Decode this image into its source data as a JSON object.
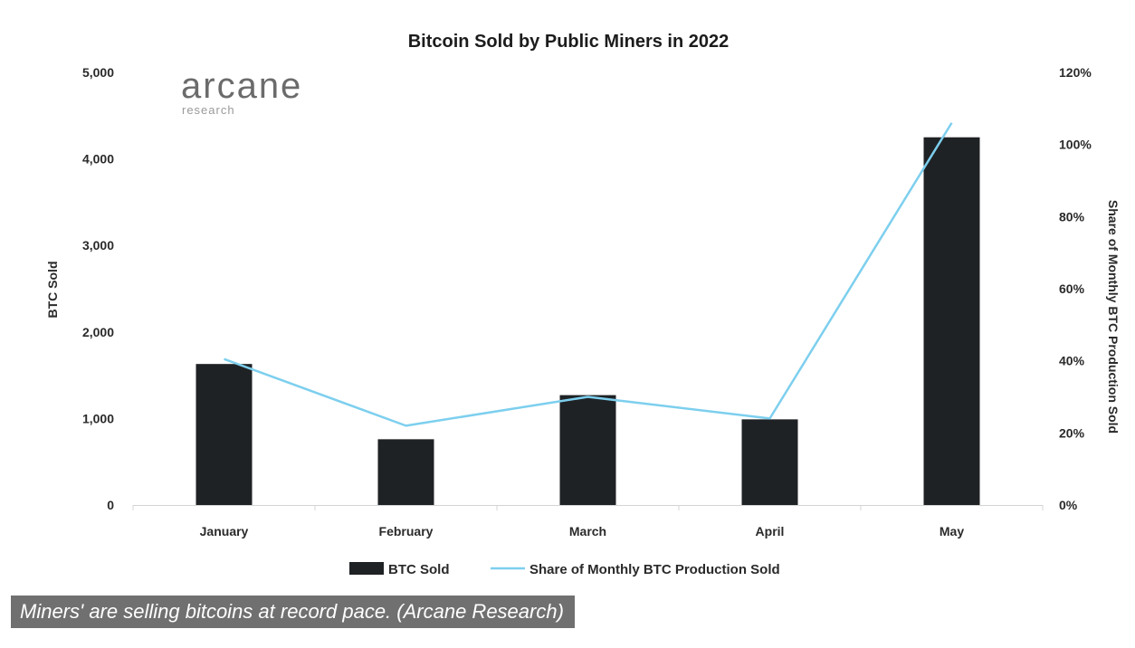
{
  "chart_data": {
    "type": "bar",
    "title": "Bitcoin Sold by Public Miners in 2022",
    "categories": [
      "January",
      "February",
      "March",
      "April",
      "May"
    ],
    "series": [
      {
        "name": "BTC Sold",
        "type": "bar",
        "axis": "left",
        "values": [
          1630,
          760,
          1270,
          990,
          4250
        ]
      },
      {
        "name": "Share of Monthly BTC Production Sold",
        "type": "line",
        "axis": "right",
        "values": [
          40.5,
          22,
          30,
          24,
          106
        ]
      }
    ],
    "ylabel": "BTC Sold",
    "y2label": "Share of Monthly BTC Production Sold",
    "ylim": [
      0,
      5000
    ],
    "y2lim": [
      0,
      120
    ],
    "yticks": [
      "0",
      "1,000",
      "2,000",
      "3,000",
      "4,000",
      "5,000"
    ],
    "y2ticks": [
      "0%",
      "20%",
      "40%",
      "60%",
      "80%",
      "100%",
      "120%"
    ],
    "legend_position": "bottom",
    "grid": false,
    "colors": {
      "bar": "#1f2225",
      "line": "#7dcfee"
    }
  },
  "logo": {
    "main": "arcane",
    "sub": "research"
  },
  "caption": "Miners' are selling bitcoins at record pace. (Arcane Research)"
}
